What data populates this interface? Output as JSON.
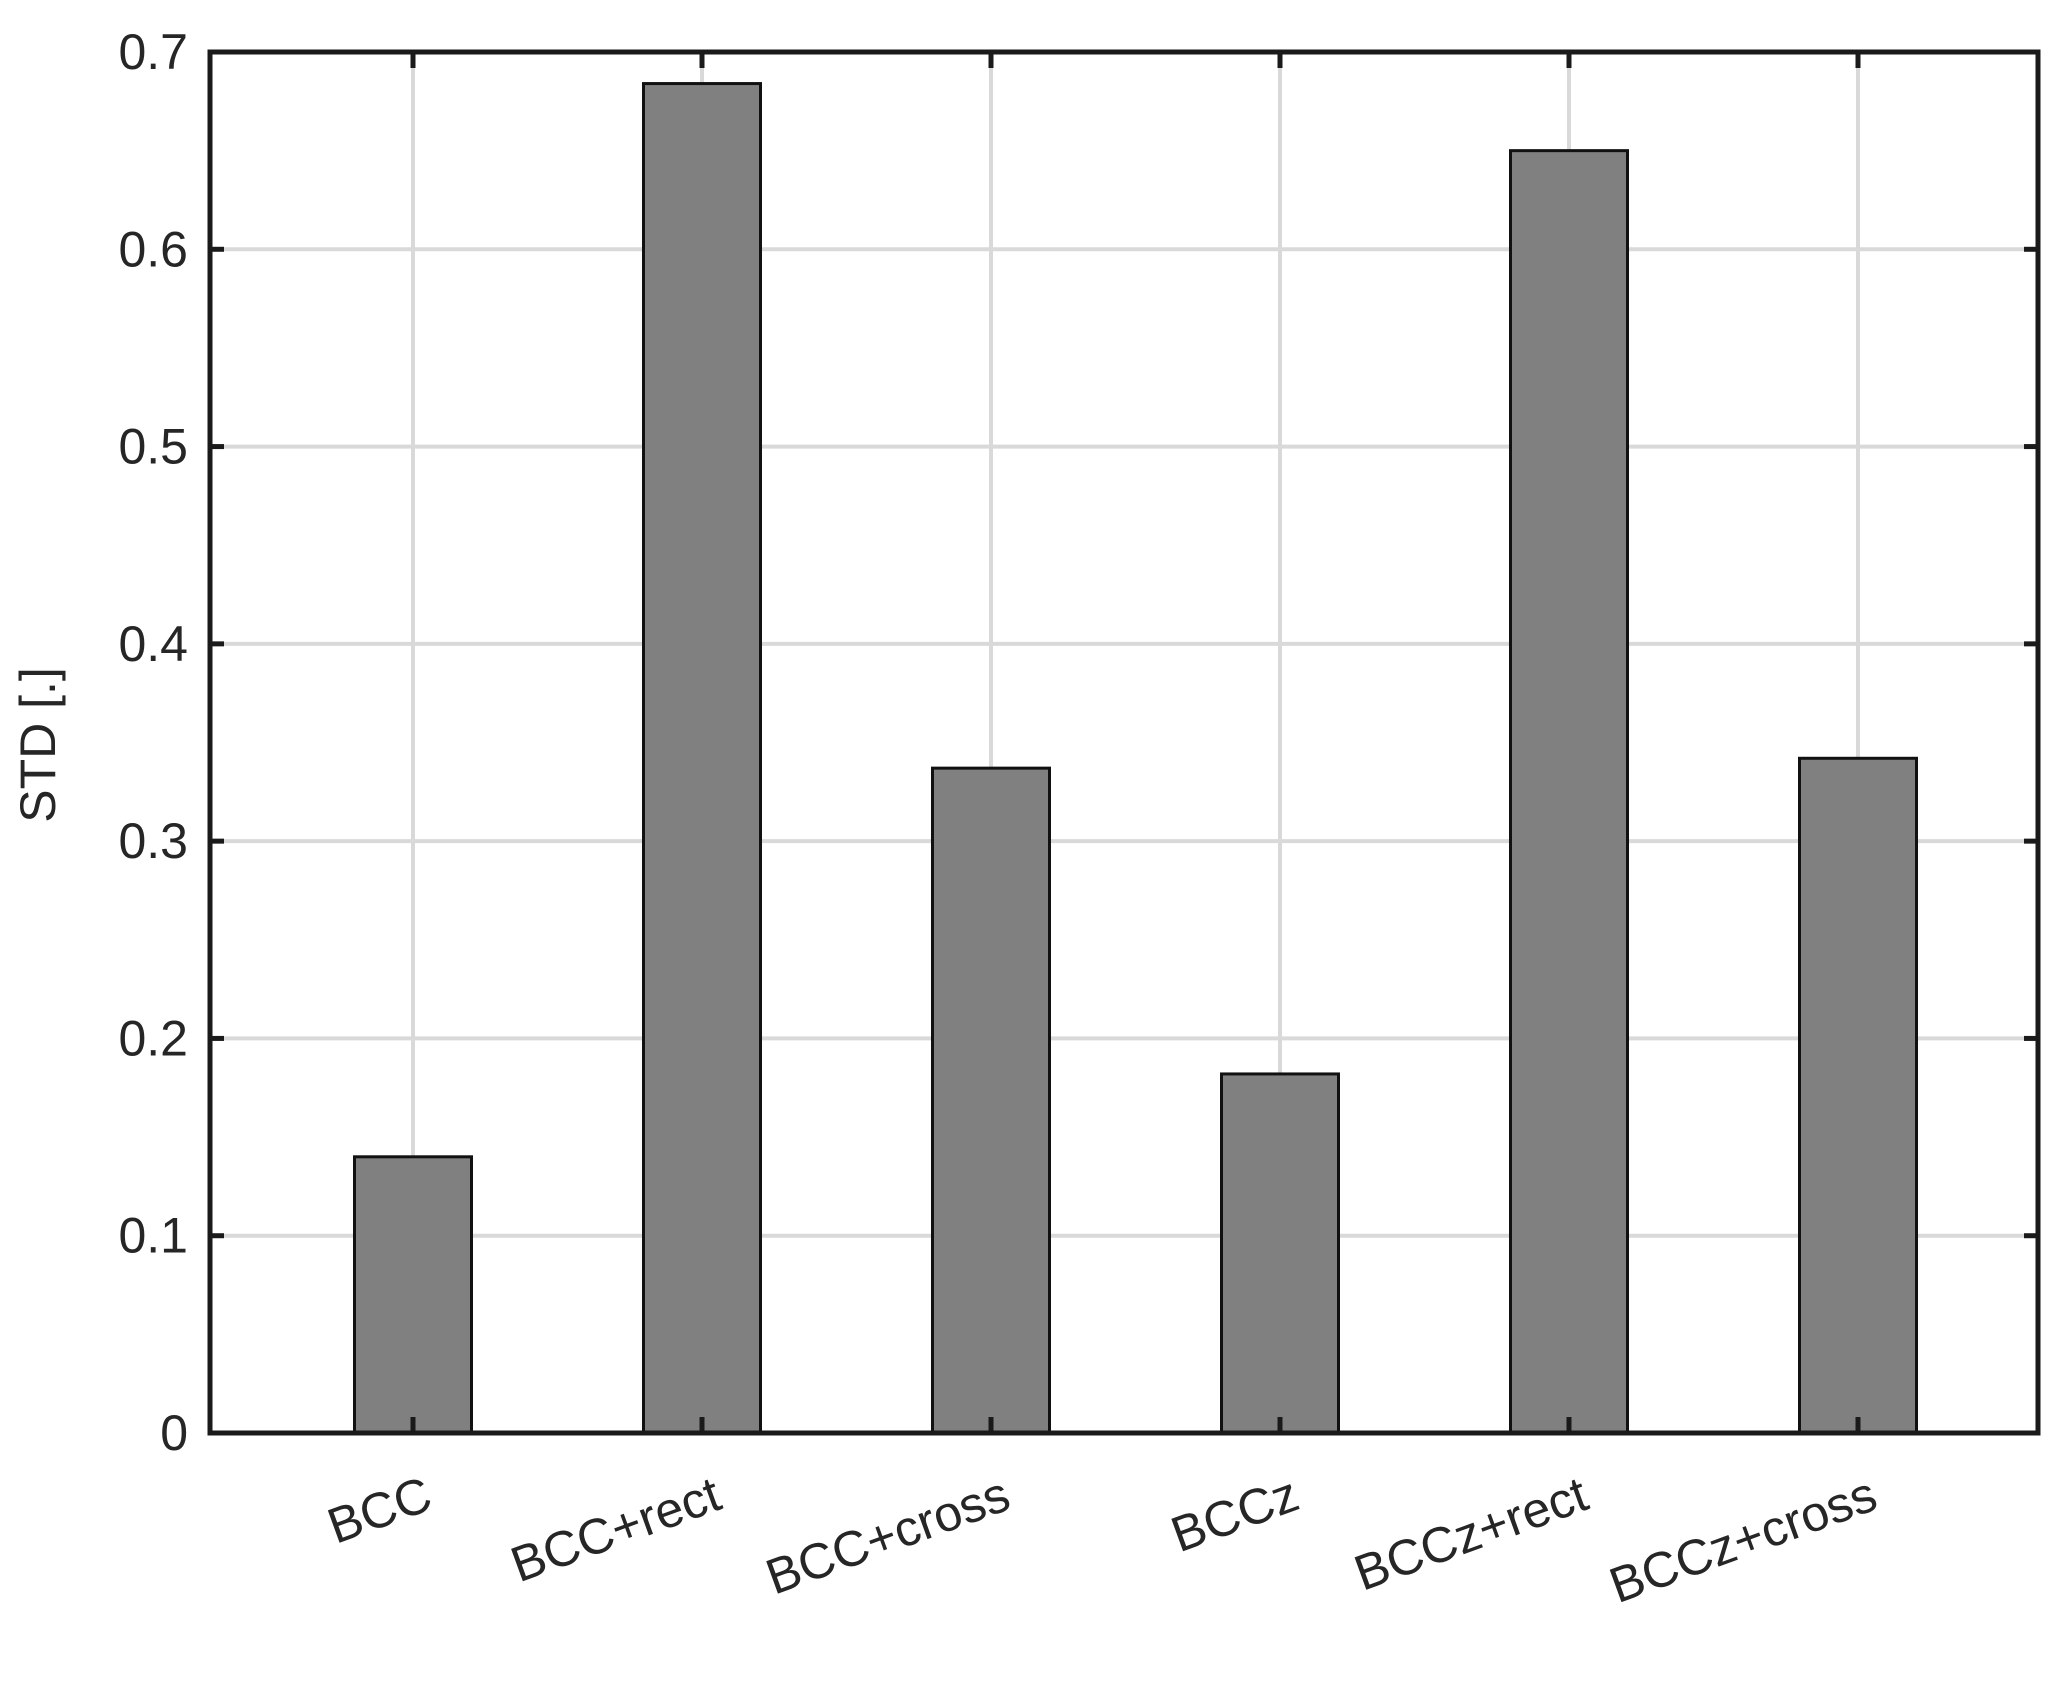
{
  "chart_data": {
    "type": "bar",
    "categories": [
      "BCC",
      "BCC+rect",
      "BCC+cross",
      "BCCz",
      "BCCz+rect",
      "BCCz+cross"
    ],
    "values": [
      0.14,
      0.684,
      0.337,
      0.182,
      0.65,
      0.342
    ],
    "title": "",
    "xlabel": "",
    "ylabel": "STD [.]",
    "ylim": [
      0,
      0.7
    ],
    "yticks": [
      "0",
      "0.1",
      "0.2",
      "0.3",
      "0.4",
      "0.5",
      "0.6",
      "0.7"
    ],
    "grid": true,
    "bar_color": "#808080",
    "grid_color": "#d9d9d9",
    "axis_color": "#1a1a1a"
  }
}
